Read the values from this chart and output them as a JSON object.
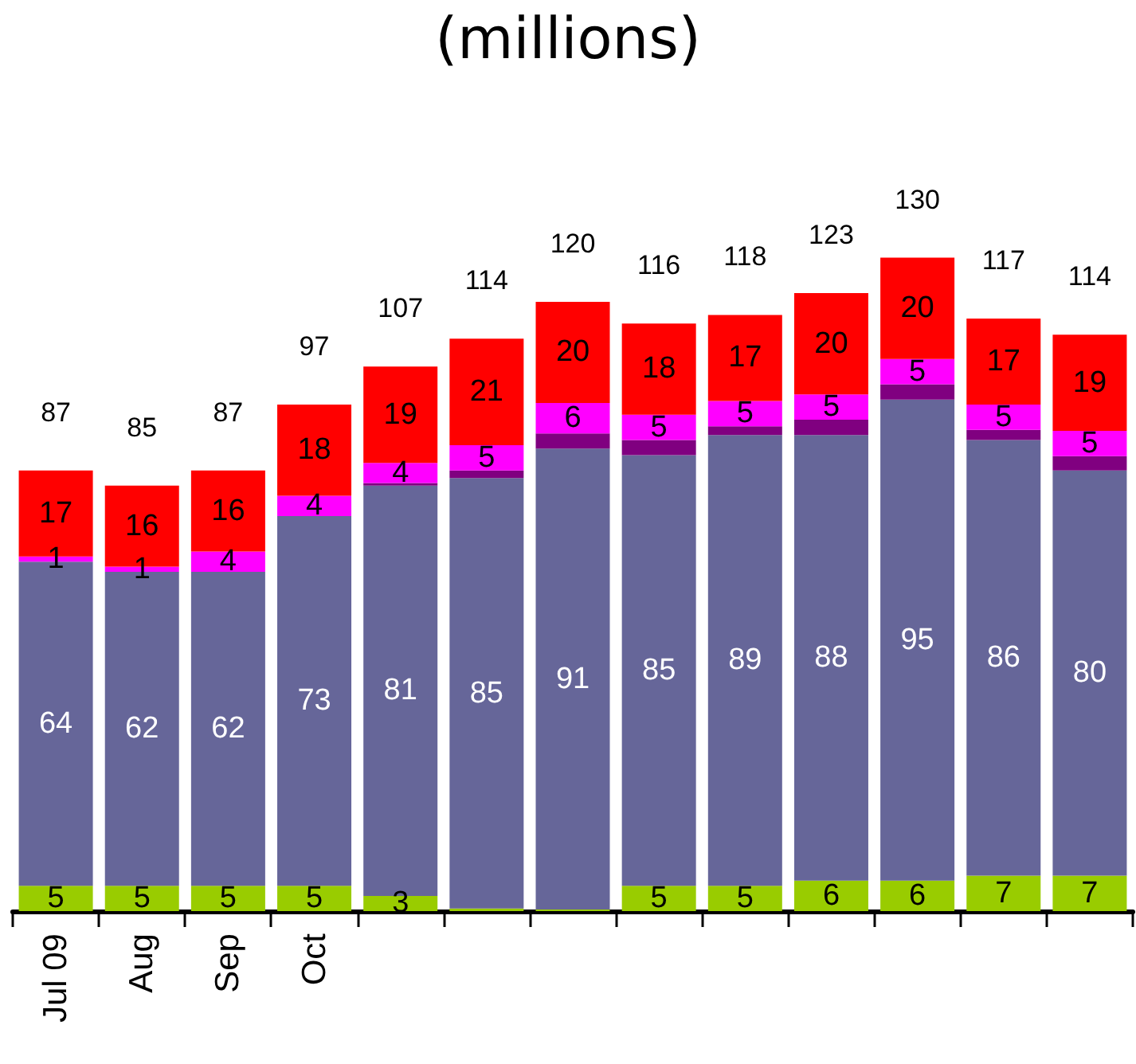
{
  "chart_data": {
    "type": "bar",
    "title": "(millions)",
    "stacked": true,
    "categories": [
      "Jul 09",
      "Aug",
      "Sep",
      "Oct",
      null,
      null,
      null,
      null,
      null,
      null,
      null,
      null,
      null
    ],
    "series": [
      {
        "color": "#99cc00",
        "values": [
          5,
          5,
          5,
          5,
          3,
          0.5,
          0.3,
          5,
          5,
          6,
          6,
          7,
          7
        ],
        "value_labels": [
          "5",
          "5",
          "5",
          "5",
          "3",
          null,
          null,
          "5",
          "5",
          "6",
          "6",
          "7",
          "7"
        ]
      },
      {
        "color": "#666699",
        "values": [
          64,
          62,
          62,
          73,
          81,
          85,
          91,
          85,
          89,
          88,
          95,
          86,
          80
        ],
        "value_labels": [
          "64",
          "62",
          "62",
          "73",
          "81",
          "85",
          "91",
          "85",
          "89",
          "88",
          "95",
          "86",
          "80"
        ]
      },
      {
        "color": "#800080",
        "values": [
          0,
          0,
          0,
          0,
          0.5,
          1.5,
          3,
          3,
          1.7,
          3,
          3,
          2,
          2.8
        ]
      },
      {
        "color": "#ff00ff",
        "values": [
          1,
          1,
          4,
          4,
          4,
          5,
          6,
          5,
          5,
          5,
          5,
          5,
          5
        ],
        "value_labels": [
          "1",
          "1",
          "4",
          "4",
          "4",
          "5",
          "6",
          "5",
          "5",
          "5",
          "5",
          "5",
          "5"
        ]
      },
      {
        "color": "#ff0000",
        "values": [
          17,
          16,
          16,
          18,
          19,
          21,
          20,
          18,
          17,
          20,
          20,
          17,
          19
        ],
        "value_labels": [
          "17",
          "16",
          "16",
          "18",
          "19",
          "21",
          "20",
          "18",
          "17",
          "20",
          "20",
          "17",
          "19"
        ]
      }
    ],
    "totals": [
      "87",
      "85",
      "87",
      "97",
      "107",
      "114",
      "120",
      "116",
      "118",
      "123",
      "130",
      "117",
      "114"
    ]
  }
}
